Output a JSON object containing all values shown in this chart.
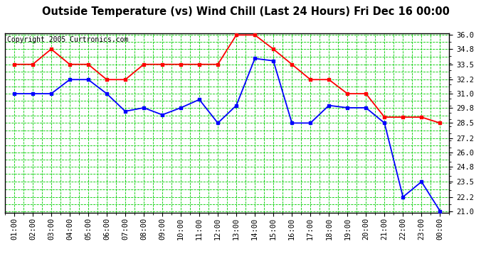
{
  "title": "Outside Temperature (vs) Wind Chill (Last 24 Hours) Fri Dec 16 00:00",
  "copyright": "Copyright 2005 Curtronics.com",
  "x_labels": [
    "01:00",
    "02:00",
    "03:00",
    "04:00",
    "05:00",
    "06:00",
    "07:00",
    "08:00",
    "09:00",
    "10:00",
    "11:00",
    "12:00",
    "13:00",
    "14:00",
    "15:00",
    "16:00",
    "17:00",
    "18:00",
    "19:00",
    "20:00",
    "21:00",
    "22:00",
    "23:00",
    "00:00"
  ],
  "red_temp": [
    33.5,
    33.5,
    34.8,
    33.5,
    33.5,
    32.2,
    32.2,
    33.5,
    33.5,
    33.5,
    33.5,
    33.5,
    36.0,
    36.0,
    34.8,
    33.5,
    32.2,
    32.2,
    31.0,
    31.0,
    29.0,
    29.0,
    29.0,
    28.5
  ],
  "blue_wc": [
    31.0,
    31.0,
    31.0,
    32.2,
    32.2,
    31.0,
    29.5,
    29.8,
    29.2,
    29.8,
    30.5,
    28.5,
    30.0,
    34.0,
    33.8,
    28.5,
    28.5,
    30.0,
    29.8,
    29.8,
    28.5,
    22.2,
    23.5,
    21.0
  ],
  "ylim": [
    21.0,
    36.0
  ],
  "yticks": [
    21.0,
    22.2,
    23.5,
    24.8,
    26.0,
    27.2,
    28.5,
    29.8,
    31.0,
    32.2,
    33.5,
    34.8,
    36.0
  ],
  "background_color": "#ffffff",
  "plot_bg_color": "#ffffff",
  "grid_color": "#00cc00",
  "red_color": "#ff0000",
  "blue_color": "#0000ff",
  "title_color": "#000000",
  "border_color": "#000000",
  "title_fontsize": 10.5,
  "tick_fontsize": 7.5,
  "copyright_fontsize": 7.0
}
